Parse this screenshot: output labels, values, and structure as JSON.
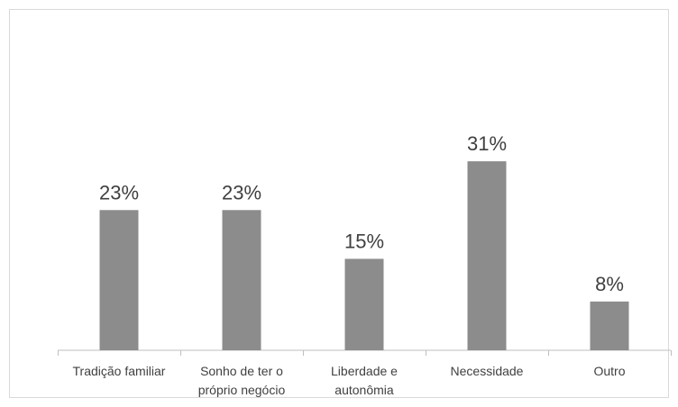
{
  "chart_data": {
    "type": "bar",
    "categories": [
      [
        "Tradição familiar"
      ],
      [
        "Sonho de ter o",
        "próprio negócio"
      ],
      [
        "Liberdade e",
        "autonômia"
      ],
      [
        "Necessidade"
      ],
      [
        "Outro"
      ]
    ],
    "values": [
      23,
      23,
      15,
      31,
      8
    ],
    "value_labels": [
      "23%",
      "23%",
      "15%",
      "31%",
      "8%"
    ],
    "unit": "%",
    "title": "",
    "xlabel": "",
    "ylabel": "",
    "ylim": [
      0,
      36
    ],
    "grid": false,
    "legend": "none",
    "bar_color": "#8c8c8c",
    "text_color": "#404040",
    "axis_color": "#bfbfbf"
  }
}
